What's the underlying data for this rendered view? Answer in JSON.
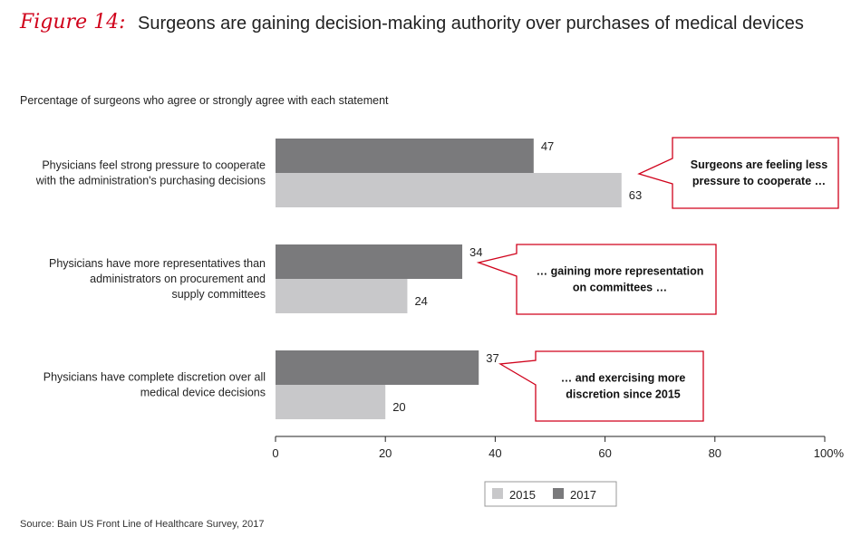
{
  "header": {
    "figure_label": "Figure 14:",
    "title": "Surgeons are gaining decision-making authority over purchases of medical devices"
  },
  "subtitle": "Percentage of surgeons who agree or strongly agree with each statement",
  "source": "Source: Bain US Front Line of Healthcare Survey, 2017",
  "colors": {
    "2015": "#c8c8ca",
    "2017": "#7a7a7c",
    "accent": "#d0021b"
  },
  "chart_data": {
    "type": "bar",
    "orientation": "horizontal",
    "categories": [
      [
        "Physicians feel strong pressure to cooperate",
        "with the administration's purchasing decisions"
      ],
      [
        "Physicians have more representatives than",
        "administrators on procurement and",
        "supply committees"
      ],
      [
        "Physicians have complete discretion over all",
        "medical device decisions"
      ]
    ],
    "series": [
      {
        "name": "2017",
        "values": [
          47,
          34,
          37
        ]
      },
      {
        "name": "2015",
        "values": [
          63,
          24,
          20
        ]
      }
    ],
    "xlim": [
      0,
      100
    ],
    "xticks": [
      "0",
      "20",
      "40",
      "60",
      "80",
      "100%"
    ],
    "legend": {
      "position": "bottom-right",
      "entries": [
        "2015",
        "2017"
      ]
    },
    "callouts": [
      [
        "Surgeons are feeling less",
        "pressure to cooperate …"
      ],
      [
        "… gaining more representation",
        "on committees …"
      ],
      [
        "… and exercising more",
        "discretion since 2015"
      ]
    ]
  }
}
